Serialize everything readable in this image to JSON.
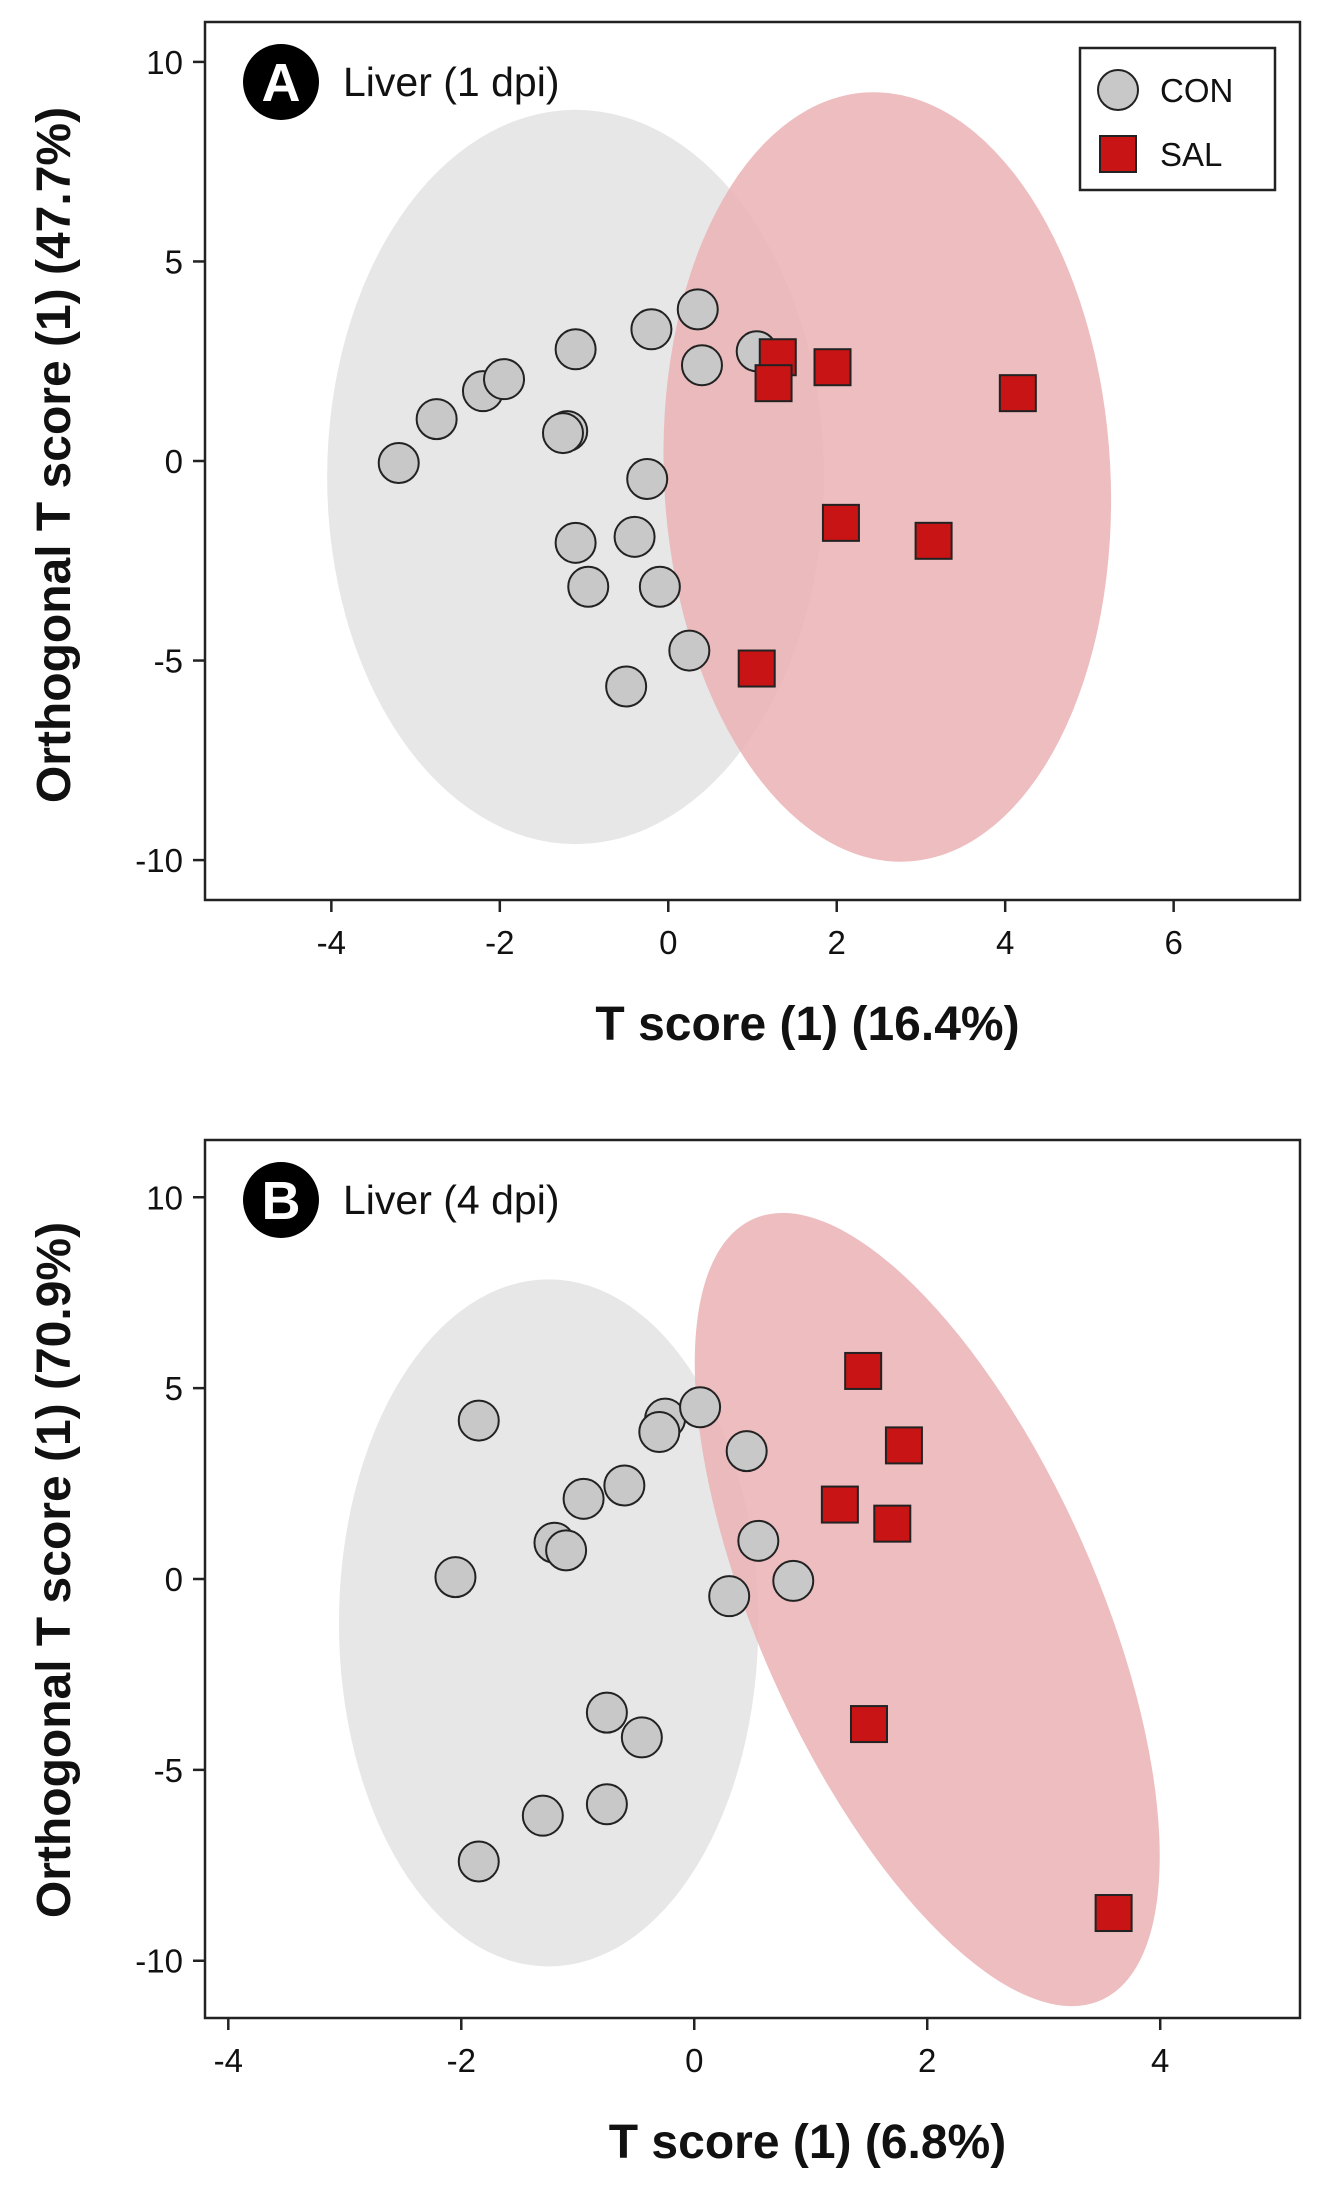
{
  "chart_data": [
    {
      "type": "scatter",
      "panel_label": "A",
      "title": "Liver (1 dpi)",
      "xlabel": "T score (1) (16.4%)",
      "ylabel": "Orthogonal T score (1) (47.7%)",
      "xlim": [
        -5.5,
        7.5
      ],
      "ylim": [
        -11,
        11
      ],
      "xticks": [
        -4,
        -2,
        0,
        2,
        4,
        6
      ],
      "yticks": [
        10,
        5,
        0,
        -5,
        -10
      ],
      "legend": {
        "position": "top-right",
        "entries": [
          "CON",
          "SAL"
        ]
      },
      "series": [
        {
          "name": "CON",
          "marker": "circle",
          "color": "#c8c8c8",
          "points": [
            [
              -3.2,
              -0.05
            ],
            [
              -2.75,
              1.05
            ],
            [
              -2.2,
              1.75
            ],
            [
              -1.95,
              2.05
            ],
            [
              -1.2,
              0.75
            ],
            [
              -1.25,
              0.7
            ],
            [
              -1.1,
              2.8
            ],
            [
              -0.2,
              3.3
            ],
            [
              0.35,
              3.8
            ],
            [
              0.4,
              2.4
            ],
            [
              1.05,
              2.75
            ],
            [
              -0.25,
              -0.45
            ],
            [
              -0.4,
              -1.9
            ],
            [
              -1.1,
              -2.05
            ],
            [
              -0.95,
              -3.15
            ],
            [
              -0.1,
              -3.15
            ],
            [
              0.25,
              -4.75
            ],
            [
              -0.5,
              -5.65
            ]
          ]
        },
        {
          "name": "SAL",
          "marker": "square",
          "color": "#c81414",
          "points": [
            [
              1.3,
              2.6
            ],
            [
              1.25,
              1.95
            ],
            [
              1.95,
              2.35
            ],
            [
              4.15,
              1.7
            ],
            [
              2.05,
              -1.55
            ],
            [
              3.15,
              -2.0
            ],
            [
              1.05,
              -5.2
            ]
          ]
        }
      ],
      "ellipses": [
        {
          "group": "CON",
          "center": [
            -1.1,
            -0.4
          ],
          "semi_x": 2.95,
          "semi_y": 9.2,
          "angle": 0,
          "color": "#e3e3e3"
        },
        {
          "group": "SAL",
          "center": [
            2.6,
            -0.4
          ],
          "semi_x": 2.65,
          "semi_y": 9.65,
          "angle": -3,
          "color": "#eab2b4"
        }
      ]
    },
    {
      "type": "scatter",
      "panel_label": "B",
      "title": "Liver (4 dpi)",
      "xlabel": "T score (1) (6.8%)",
      "ylabel": "Orthogonal T score (1) (70.9%)",
      "xlim": [
        -4.2,
        5.2
      ],
      "ylim": [
        -11.5,
        11.5
      ],
      "xticks": [
        -4,
        -2,
        0,
        2,
        4
      ],
      "yticks": [
        10,
        5,
        0,
        -5,
        -10
      ],
      "series": [
        {
          "name": "CON",
          "marker": "circle",
          "color": "#c8c8c8",
          "points": [
            [
              -1.85,
              4.15
            ],
            [
              -0.25,
              4.2
            ],
            [
              -0.3,
              3.85
            ],
            [
              0.05,
              4.5
            ],
            [
              0.45,
              3.35
            ],
            [
              -0.95,
              2.1
            ],
            [
              -0.6,
              2.45
            ],
            [
              -1.2,
              0.95
            ],
            [
              -1.1,
              0.75
            ],
            [
              -2.05,
              0.05
            ],
            [
              0.55,
              1.0
            ],
            [
              0.3,
              -0.45
            ],
            [
              0.85,
              -0.05
            ],
            [
              -0.75,
              -3.5
            ],
            [
              -0.45,
              -4.15
            ],
            [
              -1.3,
              -6.2
            ],
            [
              -0.75,
              -5.9
            ],
            [
              -1.85,
              -7.4
            ]
          ]
        },
        {
          "name": "SAL",
          "marker": "square",
          "color": "#c81414",
          "points": [
            [
              1.45,
              5.45
            ],
            [
              1.8,
              3.5
            ],
            [
              1.25,
              1.95
            ],
            [
              1.7,
              1.45
            ],
            [
              1.5,
              -3.8
            ],
            [
              3.6,
              -8.75
            ]
          ]
        }
      ],
      "ellipses": [
        {
          "group": "CON",
          "center": [
            -1.25,
            -1.15
          ],
          "semi_x": 1.8,
          "semi_y": 9.0,
          "angle": 0,
          "color": "#e3e3e3"
        },
        {
          "group": "SAL",
          "center": [
            2.0,
            -0.8
          ],
          "semi_x": 1.45,
          "semi_y": 11.2,
          "angle": -24,
          "color": "#eab2b4"
        }
      ]
    }
  ]
}
